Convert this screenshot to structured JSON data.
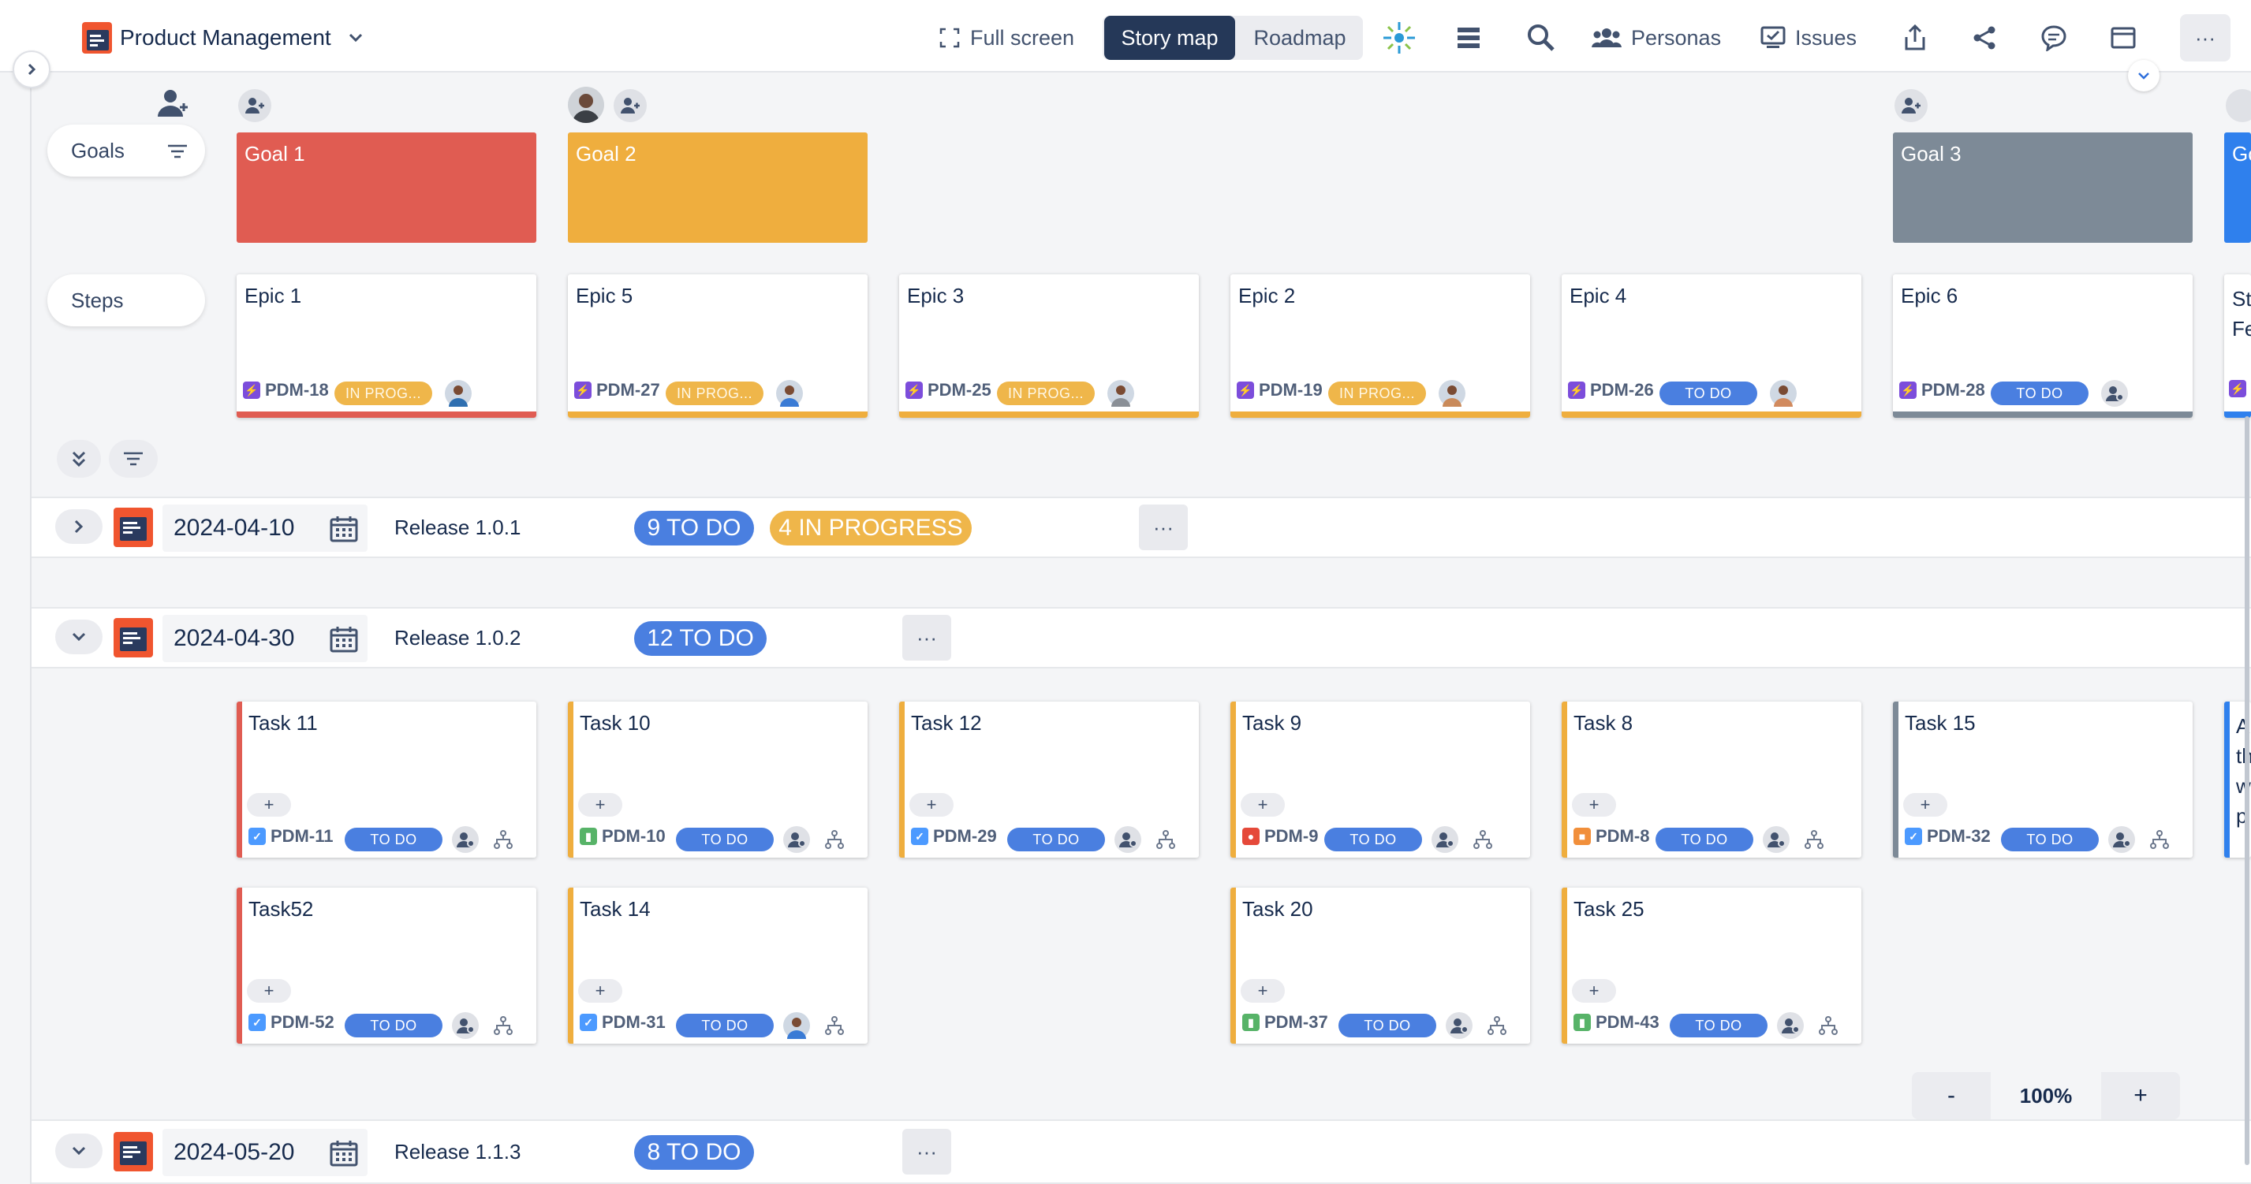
{
  "app": {
    "title": "Product Management"
  },
  "toolbar": {
    "full_screen": "Full screen",
    "story_map": "Story map",
    "roadmap": "Roadmap",
    "personas": "Personas",
    "issues": "Issues",
    "more": "···"
  },
  "side": {
    "goals": "Goals",
    "steps": "Steps"
  },
  "goals": [
    {
      "title": "Goal 1",
      "color": "#e05c52"
    },
    {
      "title": "Goal 2",
      "color": "#efae3e"
    },
    {
      "title": "Goal 3",
      "color": "#7d8a97"
    },
    {
      "title": "Go",
      "color": "#2f80ed"
    }
  ],
  "epics": [
    {
      "title": "Epic 1",
      "key": "PDM-18",
      "status": "IN PROG...",
      "accent": "#e05c52"
    },
    {
      "title": "Epic 5",
      "key": "PDM-27",
      "status": "IN PROG...",
      "accent": "#efae3e"
    },
    {
      "title": "Epic 3",
      "key": "PDM-25",
      "status": "IN PROG...",
      "accent": "#efae3e"
    },
    {
      "title": "Epic 2",
      "key": "PDM-19",
      "status": "IN PROG...",
      "accent": "#efae3e"
    },
    {
      "title": "Epic 4",
      "key": "PDM-26",
      "status": "TO DO",
      "accent": "#efae3e"
    },
    {
      "title": "Epic 6",
      "key": "PDM-28",
      "status": "TO DO",
      "accent": "#7d8a97"
    },
    {
      "title": "St Fe",
      "key": "",
      "status": "",
      "accent": "#2f80ed"
    }
  ],
  "releases": [
    {
      "date": "2024-04-10",
      "name": "Release 1.0.1",
      "todo": "9 TO DO",
      "progress": "4 IN PROGRESS",
      "expanded": false
    },
    {
      "date": "2024-04-30",
      "name": "Release 1.0.2",
      "todo": "12 TO DO",
      "expanded": true
    },
    {
      "date": "2024-05-20",
      "name": "Release 1.1.3",
      "todo": "8 TO DO",
      "expanded": true
    }
  ],
  "tasks_row1": [
    {
      "title": "Task 11",
      "key": "PDM-11",
      "status": "TO DO",
      "type": "task"
    },
    {
      "title": "Task 10",
      "key": "PDM-10",
      "status": "TO DO",
      "type": "story"
    },
    {
      "title": "Task 12",
      "key": "PDM-29",
      "status": "TO DO",
      "type": "task"
    },
    {
      "title": "Task 9",
      "key": "PDM-9",
      "status": "TO DO",
      "type": "bug"
    },
    {
      "title": "Task 8",
      "key": "PDM-8",
      "status": "TO DO",
      "type": "lock"
    },
    {
      "title": "Task 15",
      "key": "PDM-32",
      "status": "TO DO",
      "type": "task"
    },
    {
      "title": "A th w p",
      "key": "",
      "status": "",
      "type": "task"
    }
  ],
  "tasks_row2": [
    {
      "title": "Task52",
      "key": "PDM-52",
      "status": "TO DO",
      "type": "task"
    },
    {
      "title": "Task 14",
      "key": "PDM-31",
      "status": "TO DO",
      "type": "task"
    },
    {
      "title": "Task 20",
      "key": "PDM-37",
      "status": "TO DO",
      "type": "story"
    },
    {
      "title": "Task 25",
      "key": "PDM-43",
      "status": "TO DO",
      "type": "story"
    }
  ],
  "plus_label": "+",
  "zoom": {
    "minus": "-",
    "level": "100%",
    "plus": "+"
  },
  "colors": {
    "todo": "#4a7fe0",
    "progress": "#efb64a",
    "nav": "#253858",
    "purple": "#7c4ddb"
  }
}
